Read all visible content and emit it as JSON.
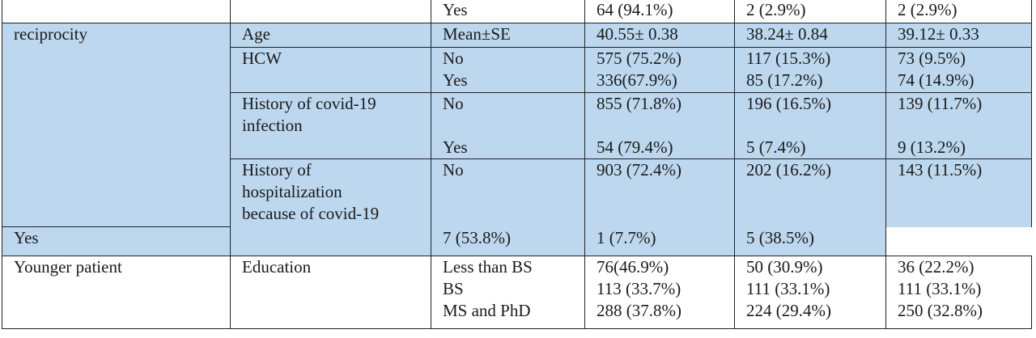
{
  "rows": {
    "top": {
      "c1": "",
      "c2": "",
      "c3": "Yes",
      "c4": "64 (94.1%)",
      "c5": "2 (2.9%)",
      "c6": "2 (2.9%)"
    },
    "age": {
      "group": "reciprocity",
      "variable": "Age",
      "level": "Mean±SE",
      "c4": "40.55± 0.38",
      "c5": "38.24± 0.84",
      "c6": "39.12± 0.33"
    },
    "hcw": {
      "variable": "HCW",
      "levels": [
        "No",
        "Yes"
      ],
      "c4": [
        "575 (75.2%)",
        "336(67.9%)"
      ],
      "c5": [
        "117 (15.3%)",
        "85 (17.2%)"
      ],
      "c6": [
        "73 (9.5%)",
        "74 (14.9%)"
      ]
    },
    "infection": {
      "variable_lines": [
        "History of covid-19",
        "infection"
      ],
      "no": {
        "level": "No",
        "c4": "855 (71.8%)",
        "c5": "196 (16.5%)",
        "c6": "139 (11.7%)"
      },
      "yes": {
        "level": "Yes",
        "c4": "54 (79.4%)",
        "c5": "5 (7.4%)",
        "c6": "9 (13.2%)"
      }
    },
    "hospitalization": {
      "variable_lines": [
        "History of",
        "hospitalization",
        "because of covid-19"
      ],
      "no": {
        "level": "No",
        "c4": "903 (72.4%)",
        "c5": "202 (16.2%)",
        "c6": "143 (11.5%)"
      },
      "yes": {
        "level": "Yes",
        "c4": "7 (53.8%)",
        "c5": "1 (7.7%)",
        "c6": "5 (38.5%)"
      }
    },
    "education": {
      "group": "Younger patient",
      "variable": "Education",
      "levels": [
        "Less than BS",
        "BS",
        "MS and PhD"
      ],
      "c4": [
        "76(46.9%)",
        "113 (33.7%)",
        "288 (37.8%)"
      ],
      "c5": [
        "50 (30.9%)",
        "111 (33.1%)",
        "224 (29.4%)"
      ],
      "c6": [
        "36 (22.2%)",
        "111 (33.1%)",
        "250 (32.8%)"
      ]
    }
  }
}
